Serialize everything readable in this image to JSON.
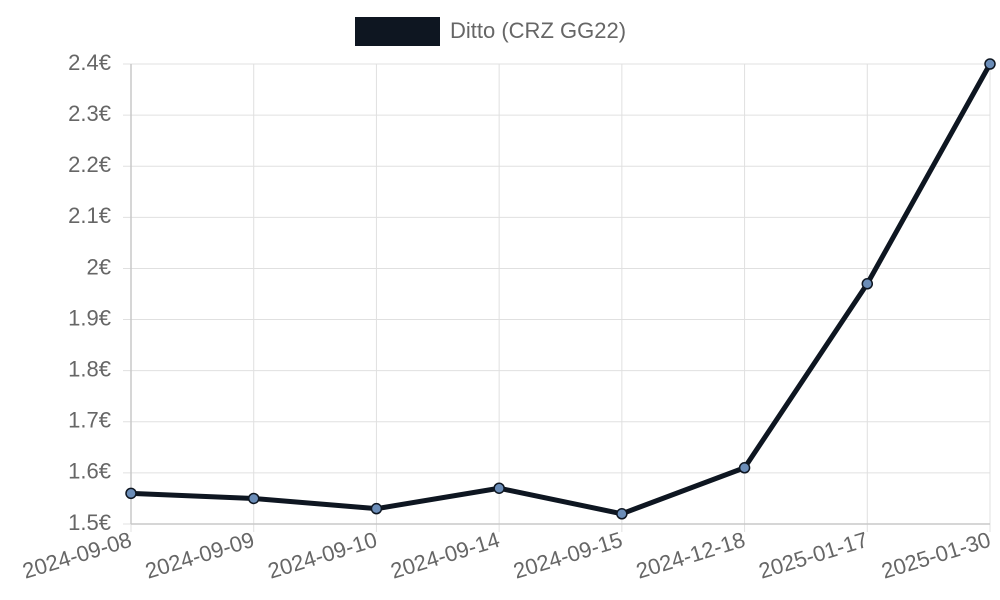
{
  "legend": {
    "label": "Ditto (CRZ GG22)"
  },
  "colors": {
    "series_line": "#0e1621",
    "point_fill": "#6b8db8",
    "point_stroke": "#0e1621",
    "grid": "#e0e0e0",
    "axis": "#c8c8c8",
    "tick_text": "#666666",
    "background": "#ffffff"
  },
  "chart_data": {
    "type": "line",
    "title": "",
    "xlabel": "",
    "ylabel": "",
    "categories": [
      "2024-09-08",
      "2024-09-09",
      "2024-09-10",
      "2024-09-14",
      "2024-09-15",
      "2024-12-18",
      "2025-01-17",
      "2025-01-30"
    ],
    "series": [
      {
        "name": "Ditto (CRZ GG22)",
        "values": [
          1.56,
          1.55,
          1.53,
          1.57,
          1.52,
          1.61,
          1.97,
          2.4
        ]
      }
    ],
    "ylim": [
      1.5,
      2.4
    ],
    "yticks": [
      1.5,
      1.6,
      1.7,
      1.8,
      1.9,
      2.0,
      2.1,
      2.2,
      2.3,
      2.4
    ],
    "ytick_labels": [
      "1.5€",
      "1.6€",
      "1.7€",
      "1.8€",
      "1.9€",
      "2€",
      "2.1€",
      "2.2€",
      "2.3€",
      "2.4€"
    ],
    "grid": true,
    "legend_position": "top"
  }
}
